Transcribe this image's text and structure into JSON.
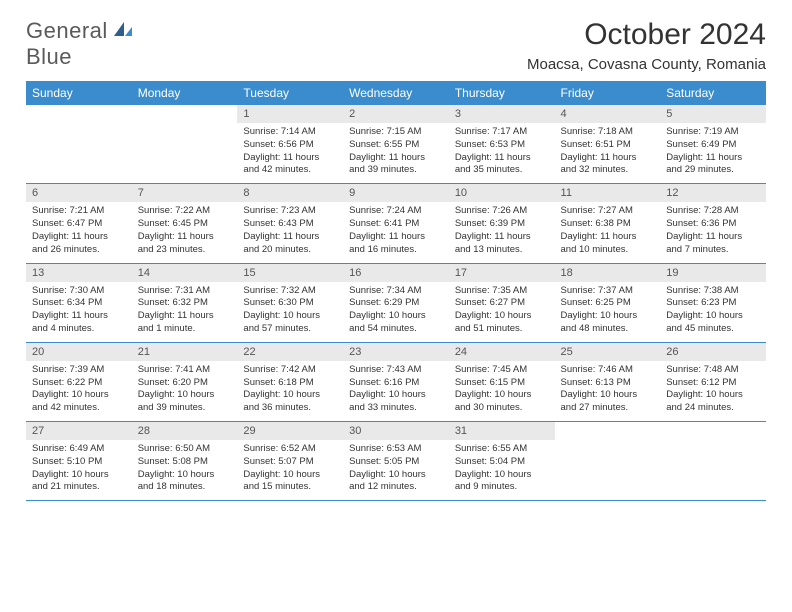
{
  "logo": {
    "word1": "General",
    "word2": "Blue"
  },
  "title": "October 2024",
  "location": "Moacsa, Covasna County, Romania",
  "colors": {
    "header_bg": "#3a8ccc",
    "header_text": "#ffffff",
    "daynum_bg": "#e9e9e9",
    "border": "#3a8ccc",
    "logo_gray": "#5a5a5a",
    "logo_blue": "#3a8ccc"
  },
  "day_headers": [
    "Sunday",
    "Monday",
    "Tuesday",
    "Wednesday",
    "Thursday",
    "Friday",
    "Saturday"
  ],
  "weeks": [
    [
      {
        "n": "",
        "sr": "",
        "ss": "",
        "dl": ""
      },
      {
        "n": "",
        "sr": "",
        "ss": "",
        "dl": ""
      },
      {
        "n": "1",
        "sr": "Sunrise: 7:14 AM",
        "ss": "Sunset: 6:56 PM",
        "dl": "Daylight: 11 hours and 42 minutes."
      },
      {
        "n": "2",
        "sr": "Sunrise: 7:15 AM",
        "ss": "Sunset: 6:55 PM",
        "dl": "Daylight: 11 hours and 39 minutes."
      },
      {
        "n": "3",
        "sr": "Sunrise: 7:17 AM",
        "ss": "Sunset: 6:53 PM",
        "dl": "Daylight: 11 hours and 35 minutes."
      },
      {
        "n": "4",
        "sr": "Sunrise: 7:18 AM",
        "ss": "Sunset: 6:51 PM",
        "dl": "Daylight: 11 hours and 32 minutes."
      },
      {
        "n": "5",
        "sr": "Sunrise: 7:19 AM",
        "ss": "Sunset: 6:49 PM",
        "dl": "Daylight: 11 hours and 29 minutes."
      }
    ],
    [
      {
        "n": "6",
        "sr": "Sunrise: 7:21 AM",
        "ss": "Sunset: 6:47 PM",
        "dl": "Daylight: 11 hours and 26 minutes."
      },
      {
        "n": "7",
        "sr": "Sunrise: 7:22 AM",
        "ss": "Sunset: 6:45 PM",
        "dl": "Daylight: 11 hours and 23 minutes."
      },
      {
        "n": "8",
        "sr": "Sunrise: 7:23 AM",
        "ss": "Sunset: 6:43 PM",
        "dl": "Daylight: 11 hours and 20 minutes."
      },
      {
        "n": "9",
        "sr": "Sunrise: 7:24 AM",
        "ss": "Sunset: 6:41 PM",
        "dl": "Daylight: 11 hours and 16 minutes."
      },
      {
        "n": "10",
        "sr": "Sunrise: 7:26 AM",
        "ss": "Sunset: 6:39 PM",
        "dl": "Daylight: 11 hours and 13 minutes."
      },
      {
        "n": "11",
        "sr": "Sunrise: 7:27 AM",
        "ss": "Sunset: 6:38 PM",
        "dl": "Daylight: 11 hours and 10 minutes."
      },
      {
        "n": "12",
        "sr": "Sunrise: 7:28 AM",
        "ss": "Sunset: 6:36 PM",
        "dl": "Daylight: 11 hours and 7 minutes."
      }
    ],
    [
      {
        "n": "13",
        "sr": "Sunrise: 7:30 AM",
        "ss": "Sunset: 6:34 PM",
        "dl": "Daylight: 11 hours and 4 minutes."
      },
      {
        "n": "14",
        "sr": "Sunrise: 7:31 AM",
        "ss": "Sunset: 6:32 PM",
        "dl": "Daylight: 11 hours and 1 minute."
      },
      {
        "n": "15",
        "sr": "Sunrise: 7:32 AM",
        "ss": "Sunset: 6:30 PM",
        "dl": "Daylight: 10 hours and 57 minutes."
      },
      {
        "n": "16",
        "sr": "Sunrise: 7:34 AM",
        "ss": "Sunset: 6:29 PM",
        "dl": "Daylight: 10 hours and 54 minutes."
      },
      {
        "n": "17",
        "sr": "Sunrise: 7:35 AM",
        "ss": "Sunset: 6:27 PM",
        "dl": "Daylight: 10 hours and 51 minutes."
      },
      {
        "n": "18",
        "sr": "Sunrise: 7:37 AM",
        "ss": "Sunset: 6:25 PM",
        "dl": "Daylight: 10 hours and 48 minutes."
      },
      {
        "n": "19",
        "sr": "Sunrise: 7:38 AM",
        "ss": "Sunset: 6:23 PM",
        "dl": "Daylight: 10 hours and 45 minutes."
      }
    ],
    [
      {
        "n": "20",
        "sr": "Sunrise: 7:39 AM",
        "ss": "Sunset: 6:22 PM",
        "dl": "Daylight: 10 hours and 42 minutes."
      },
      {
        "n": "21",
        "sr": "Sunrise: 7:41 AM",
        "ss": "Sunset: 6:20 PM",
        "dl": "Daylight: 10 hours and 39 minutes."
      },
      {
        "n": "22",
        "sr": "Sunrise: 7:42 AM",
        "ss": "Sunset: 6:18 PM",
        "dl": "Daylight: 10 hours and 36 minutes."
      },
      {
        "n": "23",
        "sr": "Sunrise: 7:43 AM",
        "ss": "Sunset: 6:16 PM",
        "dl": "Daylight: 10 hours and 33 minutes."
      },
      {
        "n": "24",
        "sr": "Sunrise: 7:45 AM",
        "ss": "Sunset: 6:15 PM",
        "dl": "Daylight: 10 hours and 30 minutes."
      },
      {
        "n": "25",
        "sr": "Sunrise: 7:46 AM",
        "ss": "Sunset: 6:13 PM",
        "dl": "Daylight: 10 hours and 27 minutes."
      },
      {
        "n": "26",
        "sr": "Sunrise: 7:48 AM",
        "ss": "Sunset: 6:12 PM",
        "dl": "Daylight: 10 hours and 24 minutes."
      }
    ],
    [
      {
        "n": "27",
        "sr": "Sunrise: 6:49 AM",
        "ss": "Sunset: 5:10 PM",
        "dl": "Daylight: 10 hours and 21 minutes."
      },
      {
        "n": "28",
        "sr": "Sunrise: 6:50 AM",
        "ss": "Sunset: 5:08 PM",
        "dl": "Daylight: 10 hours and 18 minutes."
      },
      {
        "n": "29",
        "sr": "Sunrise: 6:52 AM",
        "ss": "Sunset: 5:07 PM",
        "dl": "Daylight: 10 hours and 15 minutes."
      },
      {
        "n": "30",
        "sr": "Sunrise: 6:53 AM",
        "ss": "Sunset: 5:05 PM",
        "dl": "Daylight: 10 hours and 12 minutes."
      },
      {
        "n": "31",
        "sr": "Sunrise: 6:55 AM",
        "ss": "Sunset: 5:04 PM",
        "dl": "Daylight: 10 hours and 9 minutes."
      },
      {
        "n": "",
        "sr": "",
        "ss": "",
        "dl": ""
      },
      {
        "n": "",
        "sr": "",
        "ss": "",
        "dl": ""
      }
    ]
  ]
}
